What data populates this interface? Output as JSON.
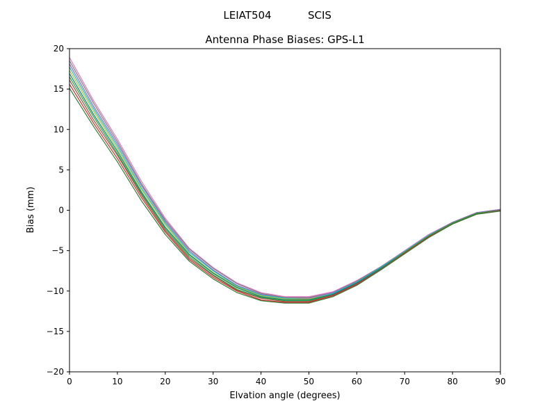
{
  "header": {
    "title_left": "LEIAT504",
    "title_right": "SCIS",
    "subtitle": "Antenna Phase Biases: GPS-L1"
  },
  "chart_data": {
    "type": "line",
    "title": "LEIAT504        SCIS",
    "subtitle": "Antenna Phase Biases: GPS-L1",
    "xlabel": "Elvation angle (degrees)",
    "ylabel": "Bias (mm)",
    "xlim": [
      0,
      90
    ],
    "ylim": [
      -20,
      20
    ],
    "grid": false,
    "legend": "none",
    "x_ticks": [
      0,
      10,
      20,
      30,
      40,
      50,
      60,
      70,
      80,
      90
    ],
    "x_tick_labels": [
      "0",
      "10",
      "20",
      "30",
      "40",
      "50",
      "60",
      "70",
      "80",
      "90"
    ],
    "y_ticks": [
      20,
      15,
      10,
      5,
      0,
      -5,
      -10,
      -15,
      -20
    ],
    "y_tick_labels": [
      "20",
      "15",
      "10",
      "5",
      "0",
      "−5",
      "−10",
      "−15",
      "−20"
    ],
    "x": [
      0,
      5,
      10,
      15,
      20,
      25,
      30,
      35,
      40,
      45,
      50,
      55,
      60,
      65,
      70,
      75,
      80,
      85,
      90
    ],
    "series": [
      {
        "name": "pink",
        "color": "#e377c2",
        "values": [
          18.9,
          13.6,
          8.8,
          3.6,
          -1.0,
          -4.7,
          -7.1,
          -9.0,
          -10.2,
          -10.7,
          -10.7,
          -10.1,
          -8.7,
          -7.0,
          -5.0,
          -3.0,
          -1.5,
          -0.3,
          0.1
        ]
      },
      {
        "name": "gray",
        "color": "#7f7f7f",
        "values": [
          18.5,
          13.3,
          8.5,
          3.3,
          -1.2,
          -4.8,
          -7.2,
          -9.1,
          -10.3,
          -10.8,
          -10.8,
          -10.2,
          -8.8,
          -7.0,
          -5.1,
          -3.1,
          -1.5,
          -0.3,
          0.1
        ]
      },
      {
        "name": "purple",
        "color": "#9467bd",
        "values": [
          18.1,
          12.9,
          8.2,
          3.1,
          -1.4,
          -5.0,
          -7.4,
          -9.3,
          -10.4,
          -10.9,
          -10.9,
          -10.2,
          -8.9,
          -7.1,
          -5.1,
          -3.1,
          -1.5,
          -0.3,
          0.1
        ]
      },
      {
        "name": "cyan",
        "color": "#17becf",
        "values": [
          17.7,
          12.6,
          7.9,
          2.8,
          -1.6,
          -5.2,
          -7.5,
          -9.4,
          -10.5,
          -10.9,
          -11.0,
          -10.3,
          -8.9,
          -7.1,
          -5.1,
          -3.1,
          -1.6,
          -0.4,
          0.0
        ]
      },
      {
        "name": "olive",
        "color": "#bcbd22",
        "values": [
          17.3,
          12.3,
          7.6,
          2.6,
          -1.8,
          -5.4,
          -7.7,
          -9.5,
          -10.6,
          -11.0,
          -11.0,
          -10.4,
          -9.0,
          -7.2,
          -5.2,
          -3.2,
          -1.6,
          -0.4,
          0.0
        ]
      },
      {
        "name": "teal",
        "color": "#008080",
        "values": [
          16.9,
          11.9,
          7.3,
          2.3,
          -2.1,
          -5.5,
          -7.8,
          -9.6,
          -10.7,
          -11.1,
          -11.1,
          -10.4,
          -9.0,
          -7.2,
          -5.2,
          -3.2,
          -1.6,
          -0.4,
          0.0
        ]
      },
      {
        "name": "green",
        "color": "#2ca02c",
        "values": [
          16.5,
          11.6,
          7.0,
          2.1,
          -2.3,
          -5.7,
          -8.0,
          -9.8,
          -10.8,
          -11.2,
          -11.2,
          -10.5,
          -9.1,
          -7.3,
          -5.2,
          -3.2,
          -1.6,
          -0.4,
          0.0
        ]
      },
      {
        "name": "brown",
        "color": "#8c564b",
        "values": [
          16.1,
          11.2,
          6.8,
          1.9,
          -2.5,
          -5.9,
          -8.1,
          -9.9,
          -10.9,
          -11.3,
          -11.3,
          -10.5,
          -9.1,
          -7.3,
          -5.3,
          -3.3,
          -1.7,
          -0.5,
          0.0
        ]
      },
      {
        "name": "red",
        "color": "#d62728",
        "values": [
          15.6,
          10.8,
          6.4,
          1.6,
          -2.7,
          -6.1,
          -8.3,
          -10.0,
          -11.1,
          -11.4,
          -11.4,
          -10.6,
          -9.2,
          -7.4,
          -5.3,
          -3.3,
          -1.7,
          -0.5,
          -0.1
        ]
      },
      {
        "name": "dark-green",
        "color": "#2e7d32",
        "values": [
          15.1,
          10.4,
          6.0,
          1.2,
          -3.0,
          -6.3,
          -8.5,
          -10.2,
          -11.2,
          -11.5,
          -11.5,
          -10.7,
          -9.3,
          -7.4,
          -5.4,
          -3.4,
          -1.7,
          -0.5,
          -0.1
        ]
      }
    ]
  }
}
